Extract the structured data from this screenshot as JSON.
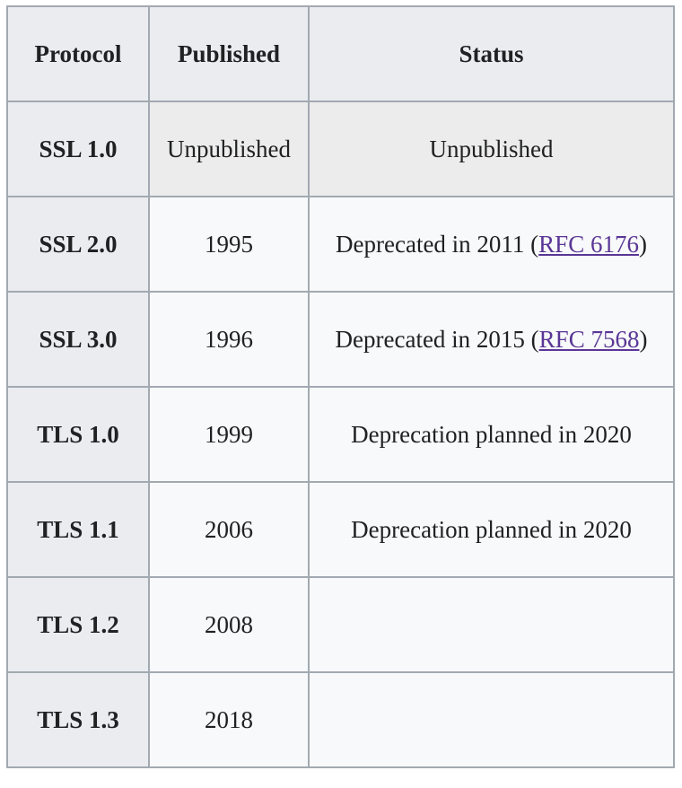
{
  "table": {
    "header": [
      "Protocol",
      "Published",
      "Status"
    ],
    "rows": [
      {
        "protocol": "SSL 1.0",
        "published": "Unpublished",
        "status": {
          "text": "Unpublished"
        }
      },
      {
        "protocol": "SSL 2.0",
        "published": "1995",
        "status": {
          "text": "Deprecated in 2011 (",
          "link": "RFC 6176",
          "after": ")"
        }
      },
      {
        "protocol": "SSL 3.0",
        "published": "1996",
        "status": {
          "text": "Deprecated in 2015 (",
          "link": "RFC 7568",
          "after": ")"
        }
      },
      {
        "protocol": "TLS 1.0",
        "published": "1999",
        "status": {
          "text": "Deprecation planned in 2020"
        }
      },
      {
        "protocol": "TLS 1.1",
        "published": "2006",
        "status": {
          "text": "Deprecation planned in 2020"
        }
      },
      {
        "protocol": "TLS 1.2",
        "published": "2008"
      },
      {
        "protocol": "TLS 1.3",
        "published": "2018"
      }
    ]
  }
}
